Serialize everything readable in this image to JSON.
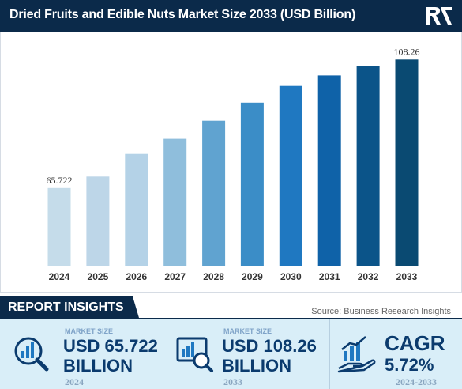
{
  "header": {
    "title": "Dried Fruits and Edible Nuts Market Size 2033 (USD Billion)"
  },
  "chart_data": {
    "type": "bar",
    "title": "Dried Fruits and Edible Nuts Market Size 2033 (USD Billion)",
    "categories": [
      "2024",
      "2025",
      "2026",
      "2027",
      "2028",
      "2029",
      "2030",
      "2031",
      "2032",
      "2033"
    ],
    "values": [
      65.722,
      69.5,
      77.0,
      82.0,
      88.0,
      94.0,
      99.5,
      103.0,
      106.0,
      108.26
    ],
    "data_labels": {
      "0": "65.722",
      "9": "108.26"
    },
    "colors": [
      "#c5dcea",
      "#bdd6e8",
      "#b4d2e7",
      "#8fbedc",
      "#60a3d0",
      "#3b8dc7",
      "#1f78c1",
      "#0f62a8",
      "#0b5489",
      "#0a4a72"
    ],
    "ylim": [
      40,
      112
    ],
    "grid": false
  },
  "insights": {
    "label": "REPORT INSIGHTS",
    "source": "Source: Business Research Insights"
  },
  "cards": [
    {
      "small": "MARKET SIZE",
      "line1": "USD 65.722",
      "line2": "BILLION",
      "year": "2024"
    },
    {
      "small": "MARKET SIZE",
      "line1": "USD 108.26",
      "line2": "BILLION",
      "year": "2033"
    },
    {
      "line1": "CAGR",
      "line2": "5.72%",
      "year": "2024-2033"
    }
  ],
  "icons": [
    "bar-chart-magnifier-icon",
    "dashboard-magnifier-icon",
    "hand-growth-chart-icon"
  ]
}
